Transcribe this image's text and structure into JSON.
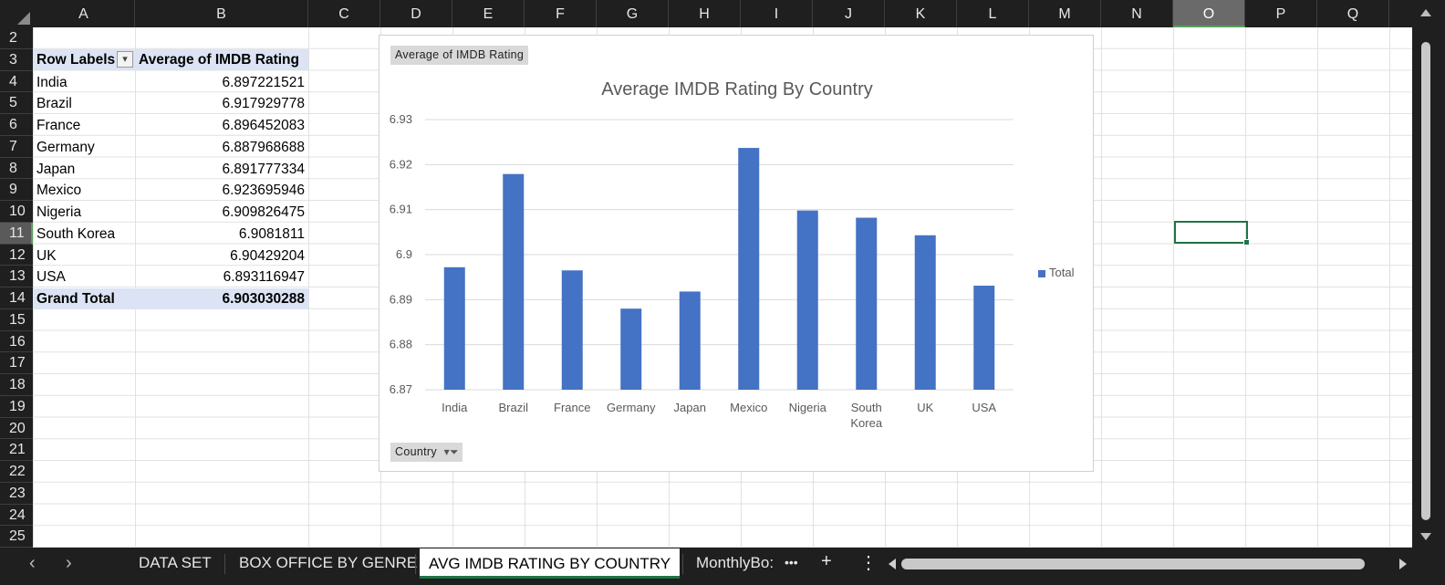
{
  "columns": [
    "A",
    "B",
    "C",
    "D",
    "E",
    "F",
    "G",
    "H",
    "I",
    "J",
    "K",
    "L",
    "M",
    "N",
    "O",
    "P",
    "Q"
  ],
  "selected_column": "O",
  "rows": [
    "2",
    "3",
    "4",
    "5",
    "6",
    "7",
    "8",
    "9",
    "10",
    "11",
    "12",
    "13",
    "14",
    "15",
    "16",
    "17",
    "18",
    "19",
    "20",
    "21",
    "22",
    "23",
    "24",
    "25"
  ],
  "selected_row": "11",
  "pivot": {
    "header_label": "Row Labels",
    "header_value": "Average of IMDB Rating",
    "entries": [
      {
        "label": "India",
        "value": "6.897221521"
      },
      {
        "label": "Brazil",
        "value": "6.917929778"
      },
      {
        "label": "France",
        "value": "6.896452083"
      },
      {
        "label": "Germany",
        "value": "6.887968688"
      },
      {
        "label": "Japan",
        "value": "6.891777334"
      },
      {
        "label": "Mexico",
        "value": "6.923695946"
      },
      {
        "label": "Nigeria",
        "value": "6.909826475"
      },
      {
        "label": "South Korea",
        "value": "6.9081811"
      },
      {
        "label": "UK",
        "value": "6.90429204"
      },
      {
        "label": "USA",
        "value": "6.893116947"
      }
    ],
    "total_label": "Grand Total",
    "total_value": "6.903030288"
  },
  "chart_buttons": {
    "value_field": "Average of IMDB Rating",
    "axis_field": "Country"
  },
  "chart_data": {
    "type": "bar",
    "title": "Average IMDB Rating By Country",
    "xlabel": "",
    "ylabel": "",
    "categories": [
      "India",
      "Brazil",
      "France",
      "Germany",
      "Japan",
      "Mexico",
      "Nigeria",
      "South Korea",
      "UK",
      "USA"
    ],
    "category_lines": [
      [
        "India"
      ],
      [
        "Brazil"
      ],
      [
        "France"
      ],
      [
        "Germany"
      ],
      [
        "Japan"
      ],
      [
        "Mexico"
      ],
      [
        "Nigeria"
      ],
      [
        "South",
        "Korea"
      ],
      [
        "UK"
      ],
      [
        "USA"
      ]
    ],
    "series": [
      {
        "name": "Total",
        "values": [
          6.8972,
          6.9179,
          6.8965,
          6.888,
          6.8918,
          6.9237,
          6.9098,
          6.9082,
          6.9043,
          6.8931
        ]
      }
    ],
    "ylim": [
      6.87,
      6.93
    ],
    "yticks": [
      "6.87",
      "6.88",
      "6.89",
      "6.9",
      "6.91",
      "6.92",
      "6.93"
    ],
    "grid": true,
    "legend": "right",
    "color": "#4472c4"
  },
  "sheet_tabs": [
    {
      "label": "DATA SET"
    },
    {
      "label": "BOX OFFICE BY GENRE"
    },
    {
      "label": "AVG IMDB RATING BY COUNTRY"
    },
    {
      "label": "MonthlyBo:"
    }
  ],
  "active_tab": "AVG IMDB RATING BY COUNTRY",
  "tab_tools": {
    "more": "•••",
    "add": "+",
    "menu": "⋮"
  },
  "nav": {
    "prev": "‹",
    "next": "›"
  }
}
